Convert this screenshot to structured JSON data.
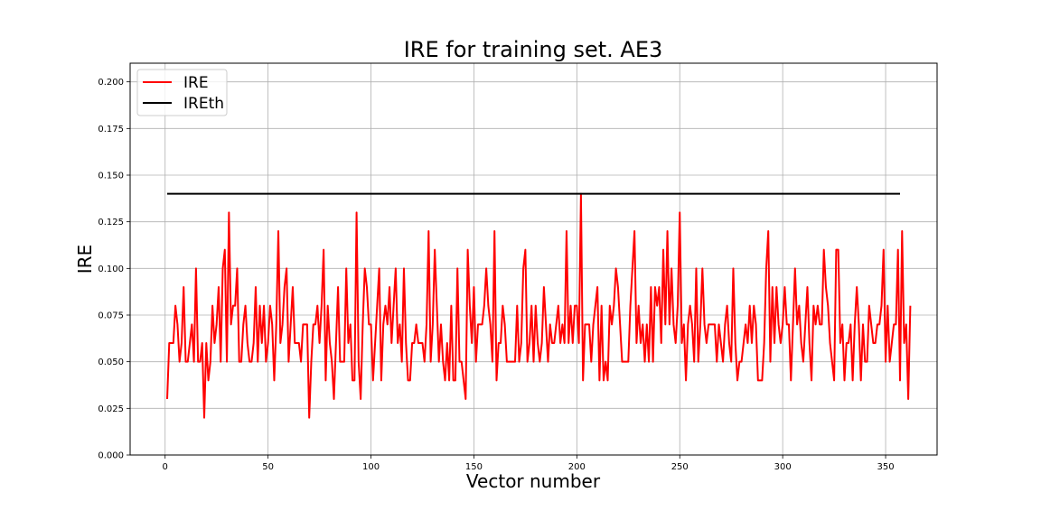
{
  "chart_data": {
    "type": "line",
    "title": "IRE for training set. AE3",
    "xlabel": "Vector number",
    "ylabel": "IRE",
    "xlim": [
      -17,
      375
    ],
    "ylim": [
      0,
      0.21
    ],
    "x_ticks": [
      0,
      50,
      100,
      150,
      200,
      250,
      300,
      350
    ],
    "y_ticks": [
      0.0,
      0.025,
      0.05,
      0.075,
      0.1,
      0.125,
      0.15,
      0.175,
      0.2
    ],
    "y_tick_labels": [
      "0.000",
      "0.025",
      "0.050",
      "0.075",
      "0.100",
      "0.125",
      "0.150",
      "0.175",
      "0.200"
    ],
    "grid": true,
    "legend_position": "top-left",
    "series": [
      {
        "name": "IRE",
        "color": "#ff0000",
        "x_start": 1,
        "values": [
          0.03,
          0.06,
          0.06,
          0.06,
          0.08,
          0.07,
          0.05,
          0.06,
          0.09,
          0.05,
          0.05,
          0.06,
          0.07,
          0.05,
          0.1,
          0.05,
          0.05,
          0.06,
          0.02,
          0.06,
          0.04,
          0.05,
          0.08,
          0.06,
          0.07,
          0.09,
          0.05,
          0.1,
          0.11,
          0.05,
          0.13,
          0.07,
          0.08,
          0.08,
          0.1,
          0.05,
          0.05,
          0.07,
          0.08,
          0.06,
          0.05,
          0.05,
          0.06,
          0.09,
          0.05,
          0.08,
          0.06,
          0.08,
          0.05,
          0.06,
          0.08,
          0.07,
          0.04,
          0.07,
          0.12,
          0.06,
          0.07,
          0.09,
          0.1,
          0.05,
          0.07,
          0.09,
          0.06,
          0.06,
          0.06,
          0.05,
          0.07,
          0.07,
          0.07,
          0.02,
          0.05,
          0.07,
          0.07,
          0.08,
          0.06,
          0.08,
          0.11,
          0.04,
          0.08,
          0.06,
          0.05,
          0.03,
          0.06,
          0.09,
          0.05,
          0.05,
          0.05,
          0.1,
          0.06,
          0.07,
          0.04,
          0.04,
          0.13,
          0.05,
          0.03,
          0.07,
          0.1,
          0.09,
          0.07,
          0.07,
          0.04,
          0.06,
          0.08,
          0.1,
          0.04,
          0.07,
          0.08,
          0.07,
          0.09,
          0.06,
          0.08,
          0.1,
          0.06,
          0.07,
          0.05,
          0.1,
          0.06,
          0.04,
          0.04,
          0.06,
          0.06,
          0.07,
          0.06,
          0.06,
          0.06,
          0.05,
          0.07,
          0.12,
          0.05,
          0.07,
          0.11,
          0.08,
          0.05,
          0.07,
          0.05,
          0.04,
          0.06,
          0.04,
          0.08,
          0.04,
          0.04,
          0.1,
          0.05,
          0.05,
          0.04,
          0.03,
          0.11,
          0.08,
          0.06,
          0.09,
          0.05,
          0.07,
          0.07,
          0.07,
          0.08,
          0.1,
          0.08,
          0.07,
          0.05,
          0.12,
          0.04,
          0.06,
          0.06,
          0.08,
          0.07,
          0.05,
          0.05,
          0.05,
          0.05,
          0.05,
          0.08,
          0.05,
          0.06,
          0.1,
          0.11,
          0.05,
          0.06,
          0.08,
          0.05,
          0.08,
          0.06,
          0.05,
          0.06,
          0.09,
          0.07,
          0.05,
          0.07,
          0.06,
          0.06,
          0.07,
          0.08,
          0.06,
          0.07,
          0.06,
          0.12,
          0.06,
          0.08,
          0.06,
          0.08,
          0.08,
          0.06,
          0.14,
          0.04,
          0.07,
          0.07,
          0.07,
          0.05,
          0.07,
          0.08,
          0.09,
          0.04,
          0.08,
          0.04,
          0.05,
          0.04,
          0.08,
          0.07,
          0.08,
          0.1,
          0.09,
          0.07,
          0.05,
          0.05,
          0.05,
          0.05,
          0.08,
          0.1,
          0.12,
          0.06,
          0.08,
          0.06,
          0.07,
          0.05,
          0.07,
          0.05,
          0.09,
          0.05,
          0.09,
          0.08,
          0.09,
          0.06,
          0.11,
          0.07,
          0.12,
          0.07,
          0.1,
          0.07,
          0.06,
          0.08,
          0.13,
          0.06,
          0.07,
          0.04,
          0.07,
          0.08,
          0.07,
          0.05,
          0.1,
          0.05,
          0.07,
          0.1,
          0.07,
          0.06,
          0.07,
          0.07,
          0.07,
          0.07,
          0.05,
          0.07,
          0.06,
          0.05,
          0.07,
          0.08,
          0.06,
          0.05,
          0.1,
          0.06,
          0.04,
          0.05,
          0.05,
          0.06,
          0.07,
          0.06,
          0.08,
          0.06,
          0.08,
          0.07,
          0.04,
          0.04,
          0.04,
          0.06,
          0.1,
          0.12,
          0.05,
          0.09,
          0.06,
          0.09,
          0.07,
          0.06,
          0.07,
          0.09,
          0.07,
          0.07,
          0.04,
          0.07,
          0.1,
          0.07,
          0.08,
          0.06,
          0.05,
          0.07,
          0.09,
          0.06,
          0.04,
          0.08,
          0.07,
          0.08,
          0.07,
          0.07,
          0.11,
          0.09,
          0.08,
          0.06,
          0.05,
          0.04,
          0.11,
          0.11,
          0.06,
          0.07,
          0.04,
          0.06,
          0.06,
          0.07,
          0.04,
          0.07,
          0.09,
          0.07,
          0.04,
          0.07,
          0.05,
          0.05,
          0.08,
          0.07,
          0.06,
          0.06,
          0.07,
          0.07,
          0.08,
          0.11,
          0.05,
          0.08,
          0.05,
          0.06,
          0.07,
          0.07,
          0.11,
          0.04,
          0.12,
          0.06,
          0.07,
          0.03,
          0.08
        ]
      },
      {
        "name": "IREth",
        "color": "#000000",
        "x": [
          1,
          357
        ],
        "values": [
          0.14,
          0.14
        ]
      }
    ]
  }
}
